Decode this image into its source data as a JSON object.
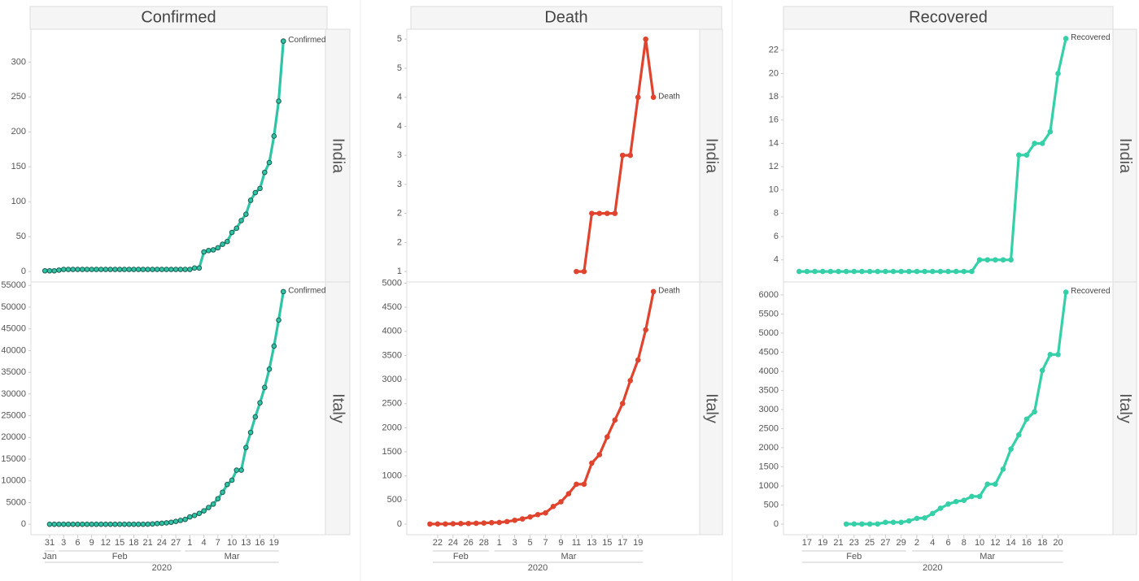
{
  "chart_data": [
    {
      "type": "line",
      "title": "Confirmed",
      "color": "#2ec4a6",
      "marker_stroke": "#1d5c52",
      "xlim": [
        "2020-01-27",
        "2020-03-30"
      ],
      "xticks": [
        {
          "value": "2020-01-31",
          "label": "31"
        },
        {
          "value": "2020-02-03",
          "label": "3"
        },
        {
          "value": "2020-02-06",
          "label": "6"
        },
        {
          "value": "2020-02-09",
          "label": "9"
        },
        {
          "value": "2020-02-12",
          "label": "12"
        },
        {
          "value": "2020-02-15",
          "label": "15"
        },
        {
          "value": "2020-02-18",
          "label": "18"
        },
        {
          "value": "2020-02-21",
          "label": "21"
        },
        {
          "value": "2020-02-24",
          "label": "24"
        },
        {
          "value": "2020-02-27",
          "label": "27"
        },
        {
          "value": "2020-03-01",
          "label": "1"
        },
        {
          "value": "2020-03-04",
          "label": "4"
        },
        {
          "value": "2020-03-07",
          "label": "7"
        },
        {
          "value": "2020-03-10",
          "label": "10"
        },
        {
          "value": "2020-03-13",
          "label": "13"
        },
        {
          "value": "2020-03-16",
          "label": "16"
        },
        {
          "value": "2020-03-19",
          "label": "19"
        }
      ],
      "months": [
        {
          "value": "2020-01",
          "label": "Jan"
        },
        {
          "value": "2020-02",
          "label": "Feb"
        },
        {
          "value": "2020-03",
          "label": "Mar"
        }
      ],
      "year": "2020",
      "panels": [
        {
          "name": "India",
          "end_label": "Confirmed",
          "ylim": [
            -15,
            347
          ],
          "yticks": [
            0,
            50,
            100,
            150,
            200,
            250,
            300
          ],
          "x": [
            "2020-01-30",
            "2020-01-31",
            "2020-02-01",
            "2020-02-02",
            "2020-02-03",
            "2020-02-04",
            "2020-02-05",
            "2020-02-06",
            "2020-02-07",
            "2020-02-08",
            "2020-02-09",
            "2020-02-10",
            "2020-02-11",
            "2020-02-12",
            "2020-02-13",
            "2020-02-14",
            "2020-02-15",
            "2020-02-16",
            "2020-02-17",
            "2020-02-18",
            "2020-02-19",
            "2020-02-20",
            "2020-02-21",
            "2020-02-22",
            "2020-02-23",
            "2020-02-24",
            "2020-02-25",
            "2020-02-26",
            "2020-02-27",
            "2020-02-28",
            "2020-02-29",
            "2020-03-01",
            "2020-03-02",
            "2020-03-03",
            "2020-03-04",
            "2020-03-05",
            "2020-03-06",
            "2020-03-07",
            "2020-03-08",
            "2020-03-09",
            "2020-03-10",
            "2020-03-11",
            "2020-03-12",
            "2020-03-13",
            "2020-03-14",
            "2020-03-15",
            "2020-03-16",
            "2020-03-17",
            "2020-03-18",
            "2020-03-19",
            "2020-03-20",
            "2020-03-21"
          ],
          "values": [
            1,
            1,
            1,
            2,
            3,
            3,
            3,
            3,
            3,
            3,
            3,
            3,
            3,
            3,
            3,
            3,
            3,
            3,
            3,
            3,
            3,
            3,
            3,
            3,
            3,
            3,
            3,
            3,
            3,
            3,
            3,
            3,
            5,
            5,
            28,
            30,
            31,
            34,
            39,
            43,
            56,
            62,
            73,
            82,
            102,
            113,
            119,
            142,
            156,
            194,
            244,
            330
          ]
        },
        {
          "name": "Italy",
          "end_label": "Confirmed",
          "ylim": [
            -2400,
            55800
          ],
          "yticks": [
            0,
            5000,
            10000,
            15000,
            20000,
            25000,
            30000,
            35000,
            40000,
            45000,
            50000,
            55000
          ],
          "x": [
            "2020-01-31",
            "2020-02-01",
            "2020-02-02",
            "2020-02-03",
            "2020-02-04",
            "2020-02-05",
            "2020-02-06",
            "2020-02-07",
            "2020-02-08",
            "2020-02-09",
            "2020-02-10",
            "2020-02-11",
            "2020-02-12",
            "2020-02-13",
            "2020-02-14",
            "2020-02-15",
            "2020-02-16",
            "2020-02-17",
            "2020-02-18",
            "2020-02-19",
            "2020-02-20",
            "2020-02-21",
            "2020-02-22",
            "2020-02-23",
            "2020-02-24",
            "2020-02-25",
            "2020-02-26",
            "2020-02-27",
            "2020-02-28",
            "2020-02-29",
            "2020-03-01",
            "2020-03-02",
            "2020-03-03",
            "2020-03-04",
            "2020-03-05",
            "2020-03-06",
            "2020-03-07",
            "2020-03-08",
            "2020-03-09",
            "2020-03-10",
            "2020-03-11",
            "2020-03-12",
            "2020-03-13",
            "2020-03-14",
            "2020-03-15",
            "2020-03-16",
            "2020-03-17",
            "2020-03-18",
            "2020-03-19",
            "2020-03-20",
            "2020-03-21"
          ],
          "values": [
            2,
            2,
            2,
            2,
            2,
            2,
            3,
            3,
            3,
            3,
            3,
            3,
            3,
            3,
            3,
            3,
            3,
            3,
            3,
            3,
            3,
            20,
            62,
            155,
            229,
            322,
            453,
            655,
            888,
            1128,
            1694,
            2036,
            2502,
            3089,
            3858,
            4636,
            5883,
            7375,
            9172,
            10149,
            12462,
            12462,
            17660,
            21157,
            24747,
            27980,
            31506,
            35713,
            41035,
            47021,
            53578
          ]
        }
      ]
    },
    {
      "type": "line",
      "title": "Death",
      "color": "#e0442f",
      "marker_stroke": "#e0442f",
      "xlim": [
        "2020-02-18",
        "2020-03-27"
      ],
      "xticks": [
        {
          "value": "2020-02-22",
          "label": "22"
        },
        {
          "value": "2020-02-24",
          "label": "24"
        },
        {
          "value": "2020-02-26",
          "label": "26"
        },
        {
          "value": "2020-02-28",
          "label": "28"
        },
        {
          "value": "2020-03-01",
          "label": "1"
        },
        {
          "value": "2020-03-03",
          "label": "3"
        },
        {
          "value": "2020-03-05",
          "label": "5"
        },
        {
          "value": "2020-03-07",
          "label": "7"
        },
        {
          "value": "2020-03-09",
          "label": "9"
        },
        {
          "value": "2020-03-11",
          "label": "11"
        },
        {
          "value": "2020-03-13",
          "label": "13"
        },
        {
          "value": "2020-03-15",
          "label": "15"
        },
        {
          "value": "2020-03-17",
          "label": "17"
        },
        {
          "value": "2020-03-19",
          "label": "19"
        }
      ],
      "months": [
        {
          "value": "2020-02",
          "label": "Feb"
        },
        {
          "value": "2020-03",
          "label": "Mar"
        }
      ],
      "year": "2020",
      "panels": [
        {
          "name": "India",
          "end_label": "Death",
          "ylim": [
            0.82,
            5.17
          ],
          "yticks": [
            1,
            {
              "value": 1.5,
              "label": "2"
            },
            2,
            {
              "value": 2.5,
              "label": "3"
            },
            3,
            {
              "value": 3.5,
              "label": "4"
            },
            4,
            {
              "value": 4.5,
              "label": "5"
            },
            5
          ],
          "x": [
            "2020-03-11",
            "2020-03-12",
            "2020-03-13",
            "2020-03-14",
            "2020-03-15",
            "2020-03-16",
            "2020-03-17",
            "2020-03-18",
            "2020-03-19",
            "2020-03-20",
            "2020-03-21"
          ],
          "values": [
            1,
            1,
            2,
            2,
            2,
            2,
            3,
            3,
            4,
            5,
            4
          ]
        },
        {
          "name": "Italy",
          "end_label": "Death",
          "ylim": [
            -220,
            5025
          ],
          "yticks": [
            0,
            500,
            1000,
            1500,
            2000,
            2500,
            3000,
            3500,
            4000,
            4500,
            5000
          ],
          "x": [
            "2020-02-21",
            "2020-02-22",
            "2020-02-23",
            "2020-02-24",
            "2020-02-25",
            "2020-02-26",
            "2020-02-27",
            "2020-02-28",
            "2020-02-29",
            "2020-03-01",
            "2020-03-02",
            "2020-03-03",
            "2020-03-04",
            "2020-03-05",
            "2020-03-06",
            "2020-03-07",
            "2020-03-08",
            "2020-03-09",
            "2020-03-10",
            "2020-03-11",
            "2020-03-12",
            "2020-03-13",
            "2020-03-14",
            "2020-03-15",
            "2020-03-16",
            "2020-03-17",
            "2020-03-18",
            "2020-03-19",
            "2020-03-20",
            "2020-03-21"
          ],
          "values": [
            1,
            2,
            3,
            7,
            10,
            12,
            17,
            21,
            29,
            34,
            52,
            79,
            107,
            148,
            197,
            233,
            366,
            463,
            631,
            827,
            827,
            1266,
            1441,
            1809,
            2158,
            2503,
            2978,
            3405,
            4032,
            4825
          ]
        }
      ]
    },
    {
      "type": "line",
      "title": "Recovered",
      "color": "#35d0a8",
      "marker_stroke": "#35d0a8",
      "xlim": [
        "2020-02-14",
        "2020-03-27"
      ],
      "xticks": [
        {
          "value": "2020-02-17",
          "label": "17"
        },
        {
          "value": "2020-02-19",
          "label": "19"
        },
        {
          "value": "2020-02-21",
          "label": "21"
        },
        {
          "value": "2020-02-23",
          "label": "23"
        },
        {
          "value": "2020-02-25",
          "label": "25"
        },
        {
          "value": "2020-02-27",
          "label": "27"
        },
        {
          "value": "2020-02-29",
          "label": "29"
        },
        {
          "value": "2020-03-02",
          "label": "2"
        },
        {
          "value": "2020-03-04",
          "label": "4"
        },
        {
          "value": "2020-03-06",
          "label": "6"
        },
        {
          "value": "2020-03-08",
          "label": "8"
        },
        {
          "value": "2020-03-10",
          "label": "10"
        },
        {
          "value": "2020-03-12",
          "label": "12"
        },
        {
          "value": "2020-03-14",
          "label": "14"
        },
        {
          "value": "2020-03-16",
          "label": "16"
        },
        {
          "value": "2020-03-18",
          "label": "18"
        },
        {
          "value": "2020-03-20",
          "label": "20"
        }
      ],
      "months": [
        {
          "value": "2020-02",
          "label": "Feb"
        },
        {
          "value": "2020-03",
          "label": "Mar"
        }
      ],
      "year": "2020",
      "panels": [
        {
          "name": "India",
          "end_label": "Recovered",
          "ylim": [
            2.1,
            23.8
          ],
          "yticks": [
            4,
            6,
            8,
            10,
            12,
            14,
            16,
            18,
            20,
            22
          ],
          "x": [
            "2020-02-16",
            "2020-02-17",
            "2020-02-18",
            "2020-02-19",
            "2020-02-20",
            "2020-02-21",
            "2020-02-22",
            "2020-02-23",
            "2020-02-24",
            "2020-02-25",
            "2020-02-26",
            "2020-02-27",
            "2020-02-28",
            "2020-02-29",
            "2020-03-01",
            "2020-03-02",
            "2020-03-03",
            "2020-03-04",
            "2020-03-05",
            "2020-03-06",
            "2020-03-07",
            "2020-03-08",
            "2020-03-09",
            "2020-03-10",
            "2020-03-11",
            "2020-03-12",
            "2020-03-13",
            "2020-03-14",
            "2020-03-15",
            "2020-03-16",
            "2020-03-17",
            "2020-03-18",
            "2020-03-19",
            "2020-03-20",
            "2020-03-21"
          ],
          "values": [
            3,
            3,
            3,
            3,
            3,
            3,
            3,
            3,
            3,
            3,
            3,
            3,
            3,
            3,
            3,
            3,
            3,
            3,
            3,
            3,
            3,
            3,
            3,
            4,
            4,
            4,
            4,
            4,
            13,
            13,
            14,
            14,
            15,
            20,
            23
          ]
        },
        {
          "name": "Italy",
          "end_label": "Recovered",
          "ylim": [
            -278,
            6340
          ],
          "yticks": [
            0,
            500,
            1000,
            1500,
            2000,
            2500,
            3000,
            3500,
            4000,
            4500,
            5000,
            5500,
            6000
          ],
          "x": [
            "2020-02-22",
            "2020-02-23",
            "2020-02-24",
            "2020-02-25",
            "2020-02-26",
            "2020-02-27",
            "2020-02-28",
            "2020-02-29",
            "2020-03-01",
            "2020-03-02",
            "2020-03-03",
            "2020-03-04",
            "2020-03-05",
            "2020-03-06",
            "2020-03-07",
            "2020-03-08",
            "2020-03-09",
            "2020-03-10",
            "2020-03-11",
            "2020-03-12",
            "2020-03-13",
            "2020-03-14",
            "2020-03-15",
            "2020-03-16",
            "2020-03-17",
            "2020-03-18",
            "2020-03-19",
            "2020-03-20",
            "2020-03-21"
          ],
          "values": [
            1,
            2,
            1,
            1,
            3,
            45,
            46,
            46,
            83,
            149,
            160,
            276,
            414,
            523,
            589,
            622,
            724,
            724,
            1045,
            1045,
            1439,
            1966,
            2335,
            2749,
            2941,
            4025,
            4440,
            4440,
            6072
          ]
        }
      ]
    }
  ]
}
